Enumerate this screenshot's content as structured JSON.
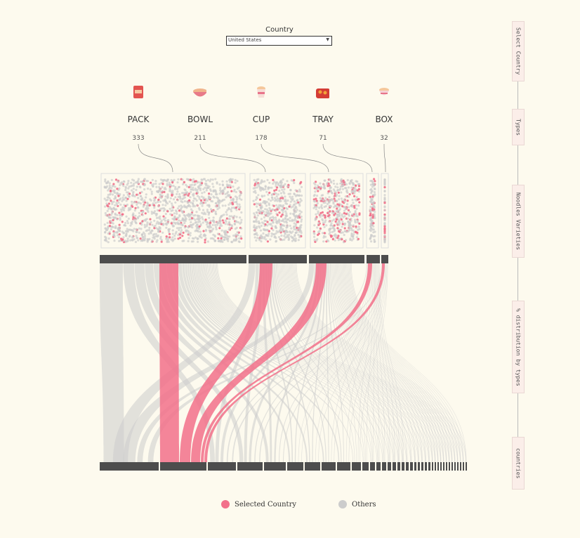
{
  "filter": {
    "label": "Country",
    "selected": "United States"
  },
  "nav_tabs": [
    "Select Country",
    "Types",
    "Noodles Varieties",
    "% distribution by types",
    "countries"
  ],
  "legend": [
    {
      "label": "Selected Country",
      "color": "#f2708a"
    },
    {
      "label": "Others",
      "color": "#cccccc"
    }
  ],
  "colors": {
    "selected": "#f2708a",
    "others": "#cccccc",
    "bar": "#4d4d4d",
    "background": "#fdfaee"
  },
  "chart_data": {
    "type": "sankey",
    "types": [
      {
        "name": "PACK",
        "count": "333",
        "icon": "pack-icon",
        "selected_share": 0.13
      },
      {
        "name": "BOWL",
        "count": "211",
        "icon": "bowl-icon",
        "selected_share": 0.1
      },
      {
        "name": "CUP",
        "count": "178",
        "icon": "cup-icon",
        "selected_share": 0.25
      },
      {
        "name": "TRAY",
        "count": "71",
        "icon": "tray-icon",
        "selected_share": 0.15
      },
      {
        "name": "BOX",
        "count": "32",
        "icon": "box-icon",
        "selected_share": 0.28
      }
    ],
    "selected_country_index": 1,
    "country_count": 38
  }
}
